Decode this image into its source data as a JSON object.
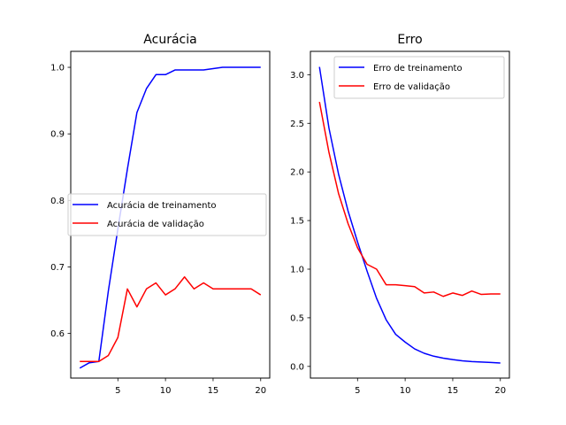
{
  "chart_data": [
    {
      "type": "line",
      "title": "Acurácia",
      "xlabel": "",
      "ylabel": "",
      "xlim": [
        0.05,
        20.95
      ],
      "ylim": [
        0.533,
        1.024
      ],
      "xticks": [
        5,
        10,
        15,
        20
      ],
      "yticks": [
        0.6,
        0.7,
        0.8,
        0.9,
        1.0
      ],
      "ytick_labels": [
        "0.6",
        "0.7",
        "0.8",
        "0.9",
        "1.0"
      ],
      "grid": false,
      "legend_position": "center-left",
      "x": [
        1,
        2,
        3,
        4,
        5,
        6,
        7,
        8,
        9,
        10,
        11,
        12,
        13,
        14,
        15,
        16,
        17,
        18,
        19,
        20
      ],
      "series": [
        {
          "name": "Acurácia de treinamento",
          "color": "#0000ff",
          "values": [
            0.548,
            0.556,
            0.558,
            0.664,
            0.757,
            0.847,
            0.932,
            0.968,
            0.989,
            0.989,
            0.996,
            0.996,
            0.996,
            0.996,
            0.998,
            1.0,
            1.0,
            1.0,
            1.0,
            1.0
          ]
        },
        {
          "name": "Acurácia de validação",
          "color": "#ff0000",
          "values": [
            0.558,
            0.558,
            0.558,
            0.567,
            0.594,
            0.667,
            0.64,
            0.667,
            0.676,
            0.658,
            0.667,
            0.685,
            0.667,
            0.676,
            0.667,
            0.667,
            0.667,
            0.667,
            0.667,
            0.658
          ]
        }
      ]
    },
    {
      "type": "line",
      "title": "Erro",
      "xlabel": "",
      "ylabel": "",
      "xlim": [
        0.05,
        20.95
      ],
      "ylim": [
        -0.12,
        3.24
      ],
      "xticks": [
        5,
        10,
        15,
        20
      ],
      "yticks": [
        0.0,
        0.5,
        1.0,
        1.5,
        2.0,
        2.5,
        3.0
      ],
      "ytick_labels": [
        "0.0",
        "0.5",
        "1.0",
        "1.5",
        "2.0",
        "2.5",
        "3.0"
      ],
      "grid": false,
      "legend_position": "top-right",
      "x": [
        1,
        2,
        3,
        4,
        5,
        6,
        7,
        8,
        9,
        10,
        11,
        12,
        13,
        14,
        15,
        16,
        17,
        18,
        19,
        20
      ],
      "series": [
        {
          "name": "Erro de treinamento",
          "color": "#0000ff",
          "values": [
            3.08,
            2.45,
            1.98,
            1.6,
            1.28,
            0.98,
            0.7,
            0.48,
            0.33,
            0.25,
            0.18,
            0.135,
            0.105,
            0.085,
            0.07,
            0.058,
            0.05,
            0.045,
            0.04,
            0.035
          ]
        },
        {
          "name": "Erro de validação",
          "color": "#ff0000",
          "values": [
            2.72,
            2.2,
            1.78,
            1.47,
            1.22,
            1.05,
            1.0,
            0.84,
            0.84,
            0.83,
            0.82,
            0.755,
            0.765,
            0.72,
            0.755,
            0.73,
            0.775,
            0.74,
            0.745,
            0.745
          ]
        }
      ]
    }
  ]
}
